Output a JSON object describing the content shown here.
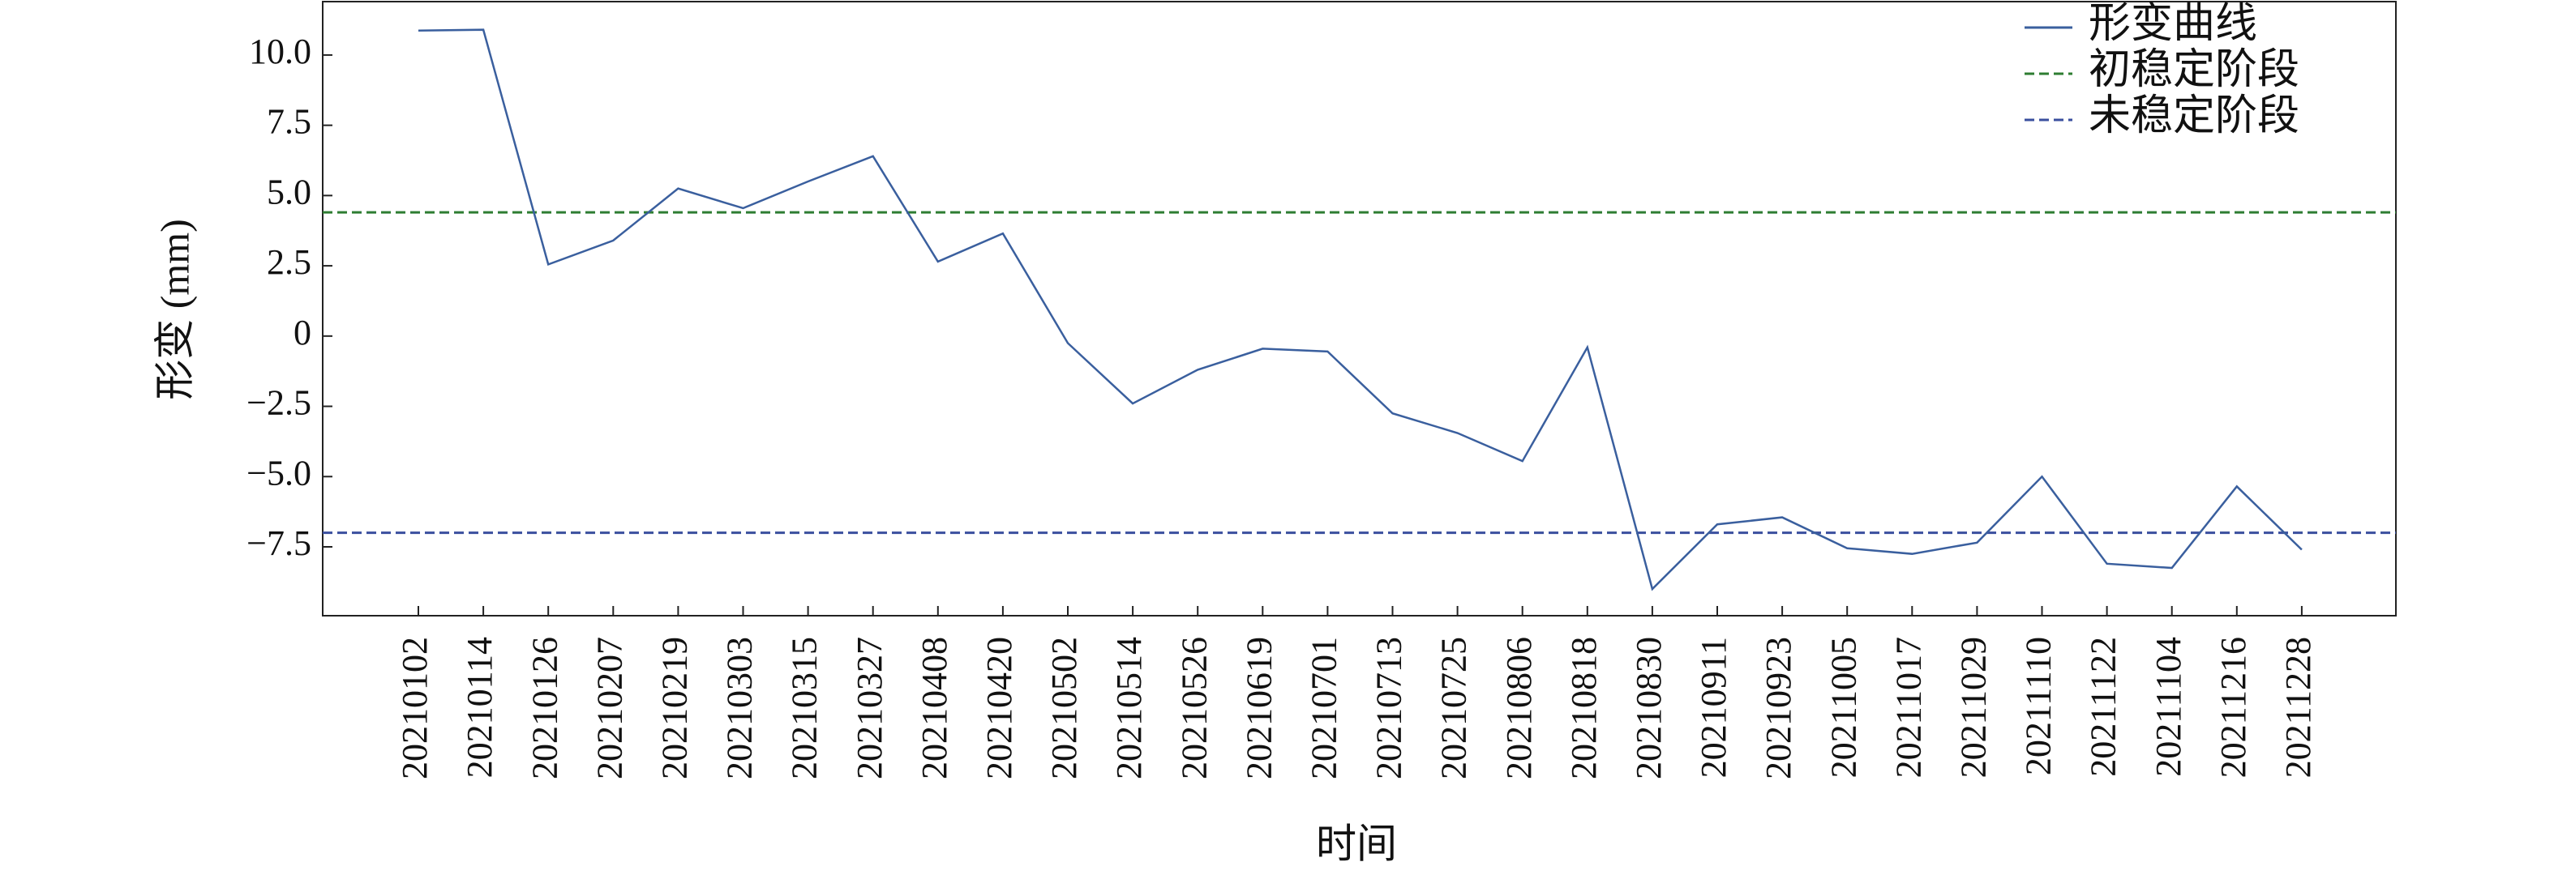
{
  "chart_data": {
    "type": "line",
    "x_label": "时间",
    "y_label": "形变 (mm)",
    "categories": [
      "20210102",
      "20210114",
      "20210126",
      "20210207",
      "20210219",
      "20210303",
      "20210315",
      "20210327",
      "20210408",
      "20210420",
      "20210502",
      "20210514",
      "20210526",
      "20210619",
      "20210701",
      "20210713",
      "20210725",
      "20210806",
      "20210818",
      "20210830",
      "20210911",
      "20210923",
      "20211005",
      "20211017",
      "20211029",
      "20211110",
      "20211122",
      "20211104",
      "20211216",
      "20211228"
    ],
    "series": [
      {
        "name": "形变曲线",
        "color": "#3a5f9e",
        "values": [
          10.87,
          10.9,
          2.55,
          3.4,
          5.25,
          4.55,
          5.5,
          6.4,
          2.65,
          3.65,
          -0.25,
          -2.4,
          -1.2,
          -0.45,
          -0.55,
          -2.75,
          -3.45,
          -4.45,
          -0.4,
          -9.0,
          -6.7,
          -6.45,
          -7.55,
          -7.75,
          -7.35,
          -5.0,
          -8.1,
          -8.25,
          -5.35,
          -7.6
        ]
      }
    ],
    "hlines": [
      {
        "name": "初稳定阶段",
        "value": 4.4,
        "color": "#2e7d32",
        "style": "dashed"
      },
      {
        "name": "未稳定阶段",
        "value": -7.0,
        "color": "#3a4f9e",
        "style": "dashed"
      }
    ],
    "ylim": [
      -9.95,
      11.9
    ],
    "yticks": [
      {
        "value": -7.5,
        "label": "−7.5"
      },
      {
        "value": -5,
        "label": "−5.0"
      },
      {
        "value": -2.5,
        "label": "−2.5"
      },
      0,
      2.5,
      {
        "value": 5,
        "label": "5.0"
      },
      {
        "value": 7.5,
        "label": "7.5"
      },
      {
        "value": 10,
        "label": "10.0"
      }
    ],
    "legend": "upper right",
    "grid": false
  }
}
